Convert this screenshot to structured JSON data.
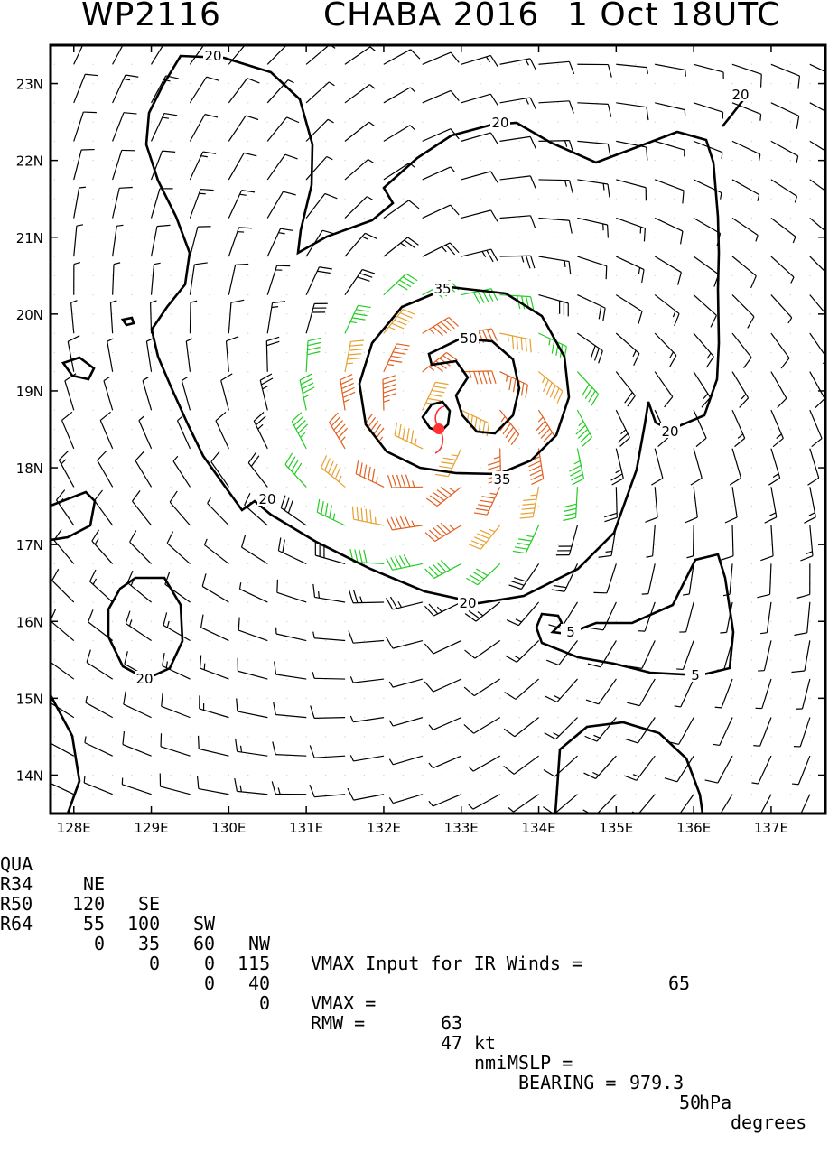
{
  "header": {
    "storm_id": "WP2116",
    "storm_name_year": "CHABA 2016",
    "datetime": "1 Oct 18UTC"
  },
  "map": {
    "lon_labels": [
      "128E",
      "129E",
      "130E",
      "131E",
      "132E",
      "133E",
      "134E",
      "135E",
      "136E",
      "137E"
    ],
    "lat_labels": [
      "23N",
      "22N",
      "21N",
      "20N",
      "19N",
      "18N",
      "17N",
      "16N",
      "15N",
      "14N"
    ],
    "lon_range": [
      127.7,
      137.7
    ],
    "lat_range": [
      13.5,
      23.5
    ],
    "center": {
      "lon": 132.75,
      "lat": 18.5
    },
    "contour_labels": [
      "20",
      "20",
      "20",
      "35",
      "50",
      "20",
      "35",
      "20",
      "20",
      "20",
      "5",
      "5"
    ],
    "colors": {
      "barb_low": "#000000",
      "barb_34": "#22cc22",
      "barb_50": "#e8a030",
      "barb_64": "#e06020",
      "center_marker": "#ff3030",
      "contour": "#000000"
    }
  },
  "footer": {
    "row1": {
      "label": "QUA",
      "ne": "NE",
      "se": "SE",
      "sw": "SW",
      "nw": "NW",
      "text": "VMAX Input for IR Winds =",
      "value": "65"
    },
    "row2": {
      "label": "R34",
      "ne": "120",
      "se": "100",
      "sw": "60",
      "nw": "115"
    },
    "row3": {
      "label": "R50",
      "ne": "55",
      "se": "35",
      "sw": "0",
      "nw": "40",
      "text": "VMAX =",
      "vmax": "63",
      "kt": "kt",
      "mslp_label": "MSLP =",
      "mslp": "979.3",
      "hpa": "hPa"
    },
    "row4": {
      "label": "R64",
      "ne": "0",
      "se": "0",
      "sw": "0",
      "nw": "0",
      "text": "RMW =",
      "rmw": "47",
      "nmi": "nmi",
      "bearing_label": "BEARING =",
      "bearing": "50",
      "degrees": "degrees"
    }
  }
}
